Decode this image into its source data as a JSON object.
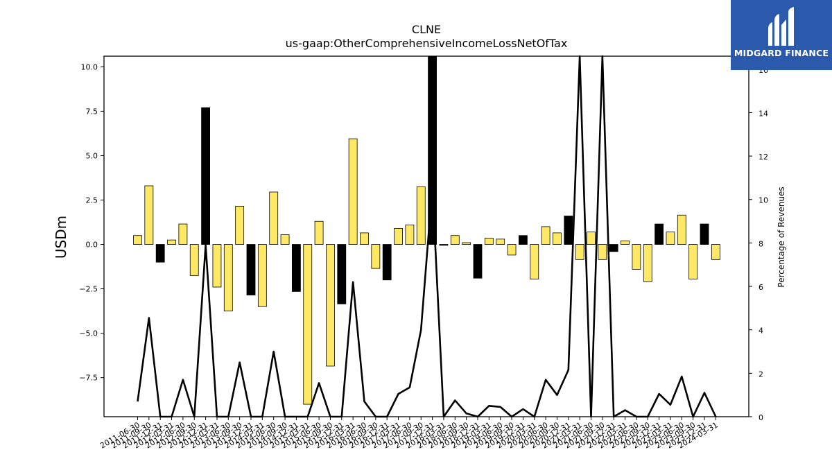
{
  "chart_data": {
    "type": "bar",
    "title": "CLNE",
    "subtitle": "us-gaap:OtherComprehensiveIncomeLossNetOfTax",
    "ylabel": "USDm",
    "y2label": "Percentage of Revenues",
    "ylim": [
      -9.7,
      10.6
    ],
    "y2lim": [
      0,
      16.6
    ],
    "yticks": [
      "10.0",
      "7.5",
      "5.0",
      "2.5",
      "0.0",
      "−2.5",
      "−5.0",
      "−7.5"
    ],
    "ytick_values": [
      10.0,
      7.5,
      5.0,
      2.5,
      0.0,
      -2.5,
      -5.0,
      -7.5
    ],
    "y2ticks": [
      "16",
      "14",
      "12",
      "10",
      "8",
      "6",
      "4",
      "2",
      "0"
    ],
    "y2tick_values": [
      16,
      14,
      12,
      10,
      8,
      6,
      4,
      2,
      0
    ],
    "categories": [
      "2011-06-30",
      "2011-09-30",
      "2011-12-31",
      "2012-03-31",
      "2012-06-30",
      "2012-09-30",
      "2012-12-31",
      "2013-03-31",
      "2013-06-30",
      "2013-09-30",
      "2013-12-31",
      "2014-03-31",
      "2014-06-30",
      "2014-09-30",
      "2014-12-31",
      "2015-03-31",
      "2015-06-30",
      "2015-09-30",
      "2015-12-31",
      "2016-03-31",
      "2016-06-30",
      "2016-09-30",
      "2016-12-31",
      "2017-03-31",
      "2017-06-30",
      "2017-09-30",
      "2017-12-31",
      "2018-03-31",
      "2018-06-30",
      "2018-09-30",
      "2018-12-31",
      "2019-03-31",
      "2019-06-30",
      "2019-09-30",
      "2019-12-31",
      "2020-03-31",
      "2020-06-30",
      "2020-09-30",
      "2020-12-31",
      "2021-03-31",
      "2021-06-30",
      "2021-09-30",
      "2021-12-31",
      "2022-03-31",
      "2022-06-30",
      "2022-09-30",
      "2022-12-31",
      "2023-03-31",
      "2023-06-30",
      "2023-09-30",
      "2023-12-31",
      "2024-03-31"
    ],
    "values": [
      0.5,
      3.3,
      -1.0,
      0.25,
      1.15,
      -1.75,
      7.7,
      -2.4,
      -3.75,
      2.15,
      -2.85,
      -3.5,
      2.95,
      0.55,
      -2.65,
      -9.0,
      1.3,
      -6.85,
      -3.35,
      5.95,
      0.65,
      -1.35,
      -2.0,
      0.9,
      1.1,
      3.25,
      10.6,
      -0.05,
      0.5,
      0.1,
      -1.9,
      0.35,
      0.3,
      -0.6,
      0.5,
      -1.95,
      1.0,
      0.65,
      1.6,
      -0.85,
      0.7,
      -0.85,
      -0.4,
      0.2,
      -1.4,
      -2.1,
      1.15,
      0.7,
      1.65,
      -1.95,
      1.15,
      -0.85
    ],
    "bar_colors": [
      "#ffe866",
      "#ffe866",
      "#000000",
      "#ffe866",
      "#ffe866",
      "#ffe866",
      "#000000",
      "#ffe866",
      "#ffe866",
      "#ffe866",
      "#000000",
      "#ffe866",
      "#ffe866",
      "#ffe866",
      "#000000",
      "#ffe866",
      "#ffe866",
      "#ffe866",
      "#000000",
      "#ffe866",
      "#ffe866",
      "#ffe866",
      "#000000",
      "#ffe866",
      "#ffe866",
      "#ffe866",
      "#000000",
      "#000000",
      "#ffe866",
      "#ffe866",
      "#000000",
      "#ffe866",
      "#ffe866",
      "#ffe866",
      "#000000",
      "#ffe866",
      "#ffe866",
      "#ffe866",
      "#000000",
      "#ffe866",
      "#ffe866",
      "#ffe866",
      "#000000",
      "#ffe866",
      "#ffe866",
      "#ffe866",
      "#000000",
      "#ffe866",
      "#ffe866",
      "#ffe866",
      "#000000",
      "#ffe866"
    ],
    "line_series": {
      "axis": "right",
      "values": [
        0.7,
        4.55,
        null,
        0.0,
        1.7,
        null,
        7.9,
        null,
        null,
        2.5,
        null,
        0.0,
        3.0,
        0.0,
        null,
        null,
        1.55,
        null,
        0.0,
        6.2,
        0.7,
        null,
        null,
        1.05,
        1.35,
        4.0,
        10.6,
        0.0,
        0.75,
        0.15,
        null,
        0.5,
        0.45,
        null,
        0.35,
        null,
        1.7,
        1.0,
        2.15,
        16.6,
        null,
        16.6,
        null,
        0.3,
        null,
        null,
        1.05,
        0.55,
        1.85,
        null,
        1.1,
        null
      ]
    },
    "bar_color_positive_quarter": "#ffe866",
    "bar_color_q4": "#000000",
    "line_color": "#000000",
    "grid": false
  },
  "logo": {
    "text": "MIDGARD FINANCE",
    "background": "#2b5aad"
  }
}
